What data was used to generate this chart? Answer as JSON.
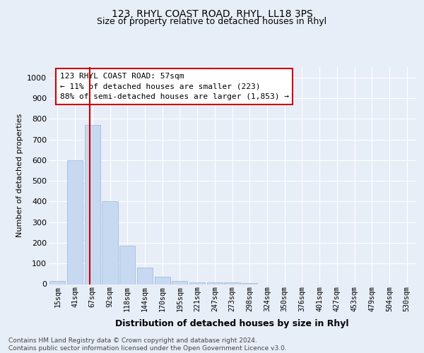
{
  "title1": "123, RHYL COAST ROAD, RHYL, LL18 3PS",
  "title2": "Size of property relative to detached houses in Rhyl",
  "xlabel": "Distribution of detached houses by size in Rhyl",
  "ylabel": "Number of detached properties",
  "categories": [
    "15sqm",
    "41sqm",
    "67sqm",
    "92sqm",
    "118sqm",
    "144sqm",
    "170sqm",
    "195sqm",
    "221sqm",
    "247sqm",
    "273sqm",
    "298sqm",
    "324sqm",
    "350sqm",
    "376sqm",
    "401sqm",
    "427sqm",
    "453sqm",
    "479sqm",
    "504sqm",
    "530sqm"
  ],
  "values": [
    15,
    600,
    770,
    400,
    185,
    80,
    35,
    15,
    10,
    10,
    8,
    5,
    0,
    0,
    0,
    0,
    0,
    0,
    0,
    0,
    0
  ],
  "bar_color": "#c6d9f0",
  "bar_edge_color": "#9ab5d4",
  "vline_x": 1.85,
  "vline_color": "#cc0000",
  "annotation_text": "123 RHYL COAST ROAD: 57sqm\n← 11% of detached houses are smaller (223)\n88% of semi-detached houses are larger (1,853) →",
  "annotation_box_facecolor": "#ffffff",
  "annotation_box_edge": "#cc0000",
  "ylim": [
    0,
    1050
  ],
  "yticks": [
    0,
    100,
    200,
    300,
    400,
    500,
    600,
    700,
    800,
    900,
    1000
  ],
  "footer": "Contains HM Land Registry data © Crown copyright and database right 2024.\nContains public sector information licensed under the Open Government Licence v3.0.",
  "bg_color": "#e8eef8",
  "plot_bg_color": "#e8eef8",
  "grid_color": "#ffffff",
  "title1_fontsize": 10,
  "title2_fontsize": 9
}
